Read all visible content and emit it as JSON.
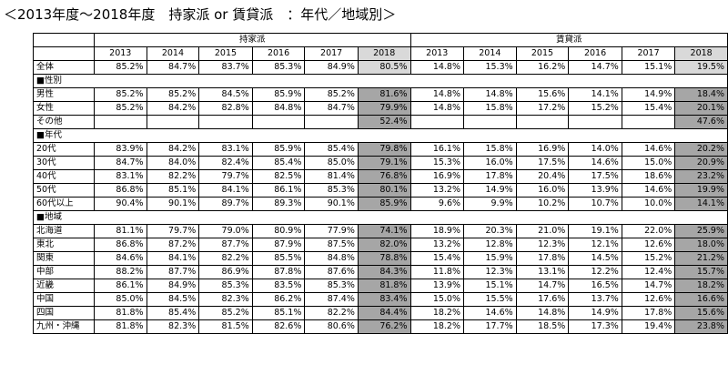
{
  "title": "＜2013年度〜2018年度　持家派 or 賃貸派　：年代／地域別＞",
  "groups": {
    "own": "持家派",
    "rent": "賃貸派"
  },
  "years": [
    "2013",
    "2014",
    "2015",
    "2016",
    "2017",
    "2018"
  ],
  "rows": [
    {
      "type": "data",
      "label": "全体",
      "own": [
        "85.2%",
        "84.7%",
        "83.7%",
        "85.3%",
        "84.9%",
        "80.5%"
      ],
      "rent": [
        "14.8%",
        "15.3%",
        "16.2%",
        "14.7%",
        "15.1%",
        "19.5%"
      ],
      "light": true
    },
    {
      "type": "section",
      "label": "■性別"
    },
    {
      "type": "data",
      "label": "男性",
      "own": [
        "85.2%",
        "85.2%",
        "84.5%",
        "85.9%",
        "85.2%",
        "81.6%"
      ],
      "rent": [
        "14.8%",
        "14.8%",
        "15.6%",
        "14.1%",
        "14.9%",
        "18.4%"
      ]
    },
    {
      "type": "data",
      "label": "女性",
      "own": [
        "85.2%",
        "84.2%",
        "82.8%",
        "84.8%",
        "84.7%",
        "79.9%"
      ],
      "rent": [
        "14.8%",
        "15.8%",
        "17.2%",
        "15.2%",
        "15.4%",
        "20.1%"
      ]
    },
    {
      "type": "data",
      "label": "その他",
      "own": [
        "",
        "",
        "",
        "",
        "",
        "52.4%"
      ],
      "rent": [
        "",
        "",
        "",
        "",
        "",
        "47.6%"
      ]
    },
    {
      "type": "section",
      "label": "■年代"
    },
    {
      "type": "data",
      "label": "20代",
      "own": [
        "83.9%",
        "84.2%",
        "83.1%",
        "85.9%",
        "85.4%",
        "79.8%"
      ],
      "rent": [
        "16.1%",
        "15.8%",
        "16.9%",
        "14.0%",
        "14.6%",
        "20.2%"
      ]
    },
    {
      "type": "data",
      "label": "30代",
      "own": [
        "84.7%",
        "84.0%",
        "82.4%",
        "85.4%",
        "85.0%",
        "79.1%"
      ],
      "rent": [
        "15.3%",
        "16.0%",
        "17.5%",
        "14.6%",
        "15.0%",
        "20.9%"
      ]
    },
    {
      "type": "data",
      "label": "40代",
      "own": [
        "83.1%",
        "82.2%",
        "79.7%",
        "82.5%",
        "81.4%",
        "76.8%"
      ],
      "rent": [
        "16.9%",
        "17.8%",
        "20.4%",
        "17.5%",
        "18.6%",
        "23.2%"
      ]
    },
    {
      "type": "data",
      "label": "50代",
      "own": [
        "86.8%",
        "85.1%",
        "84.1%",
        "86.1%",
        "85.3%",
        "80.1%"
      ],
      "rent": [
        "13.2%",
        "14.9%",
        "16.0%",
        "13.9%",
        "14.6%",
        "19.9%"
      ]
    },
    {
      "type": "data",
      "label": "60代以上",
      "own": [
        "90.4%",
        "90.1%",
        "89.7%",
        "89.3%",
        "90.1%",
        "85.9%"
      ],
      "rent": [
        "9.6%",
        "9.9%",
        "10.2%",
        "10.7%",
        "10.0%",
        "14.1%"
      ]
    },
    {
      "type": "section",
      "label": "■地域"
    },
    {
      "type": "data",
      "label": "北海道",
      "own": [
        "81.1%",
        "79.7%",
        "79.0%",
        "80.9%",
        "77.9%",
        "74.1%"
      ],
      "rent": [
        "18.9%",
        "20.3%",
        "21.0%",
        "19.1%",
        "22.0%",
        "25.9%"
      ]
    },
    {
      "type": "data",
      "label": "東北",
      "own": [
        "86.8%",
        "87.2%",
        "87.7%",
        "87.9%",
        "87.5%",
        "82.0%"
      ],
      "rent": [
        "13.2%",
        "12.8%",
        "12.3%",
        "12.1%",
        "12.6%",
        "18.0%"
      ]
    },
    {
      "type": "data",
      "label": "関東",
      "own": [
        "84.6%",
        "84.1%",
        "82.2%",
        "85.5%",
        "84.8%",
        "78.8%"
      ],
      "rent": [
        "15.4%",
        "15.9%",
        "17.8%",
        "14.5%",
        "15.2%",
        "21.2%"
      ]
    },
    {
      "type": "data",
      "label": "中部",
      "own": [
        "88.2%",
        "87.7%",
        "86.9%",
        "87.8%",
        "87.6%",
        "84.3%"
      ],
      "rent": [
        "11.8%",
        "12.3%",
        "13.1%",
        "12.2%",
        "12.4%",
        "15.7%"
      ]
    },
    {
      "type": "data",
      "label": "近畿",
      "own": [
        "86.1%",
        "84.9%",
        "85.3%",
        "83.5%",
        "85.3%",
        "81.8%"
      ],
      "rent": [
        "13.9%",
        "15.1%",
        "14.7%",
        "16.5%",
        "14.7%",
        "18.2%"
      ]
    },
    {
      "type": "data",
      "label": "中国",
      "own": [
        "85.0%",
        "84.5%",
        "82.3%",
        "86.2%",
        "87.4%",
        "83.4%"
      ],
      "rent": [
        "15.0%",
        "15.5%",
        "17.6%",
        "13.7%",
        "12.6%",
        "16.6%"
      ]
    },
    {
      "type": "data",
      "label": "四国",
      "own": [
        "81.8%",
        "85.4%",
        "85.2%",
        "85.1%",
        "82.2%",
        "84.4%"
      ],
      "rent": [
        "18.2%",
        "14.6%",
        "14.8%",
        "14.9%",
        "17.8%",
        "15.6%"
      ]
    },
    {
      "type": "data",
      "label": "九州・沖縄",
      "own": [
        "81.8%",
        "82.3%",
        "81.5%",
        "82.6%",
        "80.6%",
        "76.2%"
      ],
      "rent": [
        "18.2%",
        "17.7%",
        "18.5%",
        "17.3%",
        "19.4%",
        "23.8%"
      ]
    }
  ]
}
